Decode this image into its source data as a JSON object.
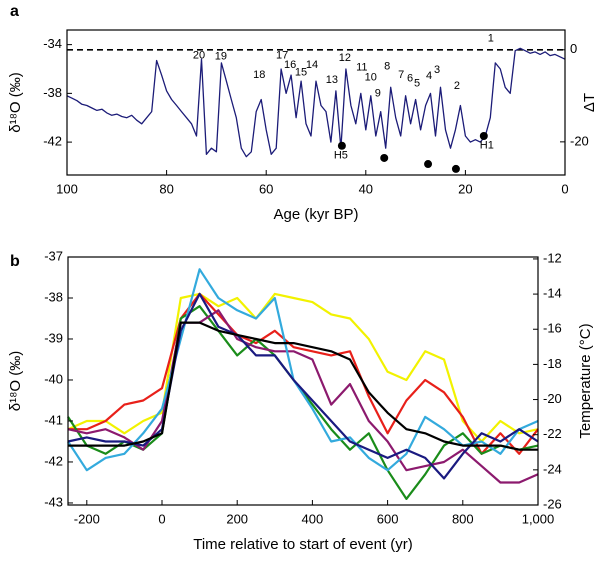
{
  "chart_data": [
    {
      "type": "line",
      "panel_label": "a",
      "x_label": "Age (kyr BP)",
      "y_label": "δ¹⁸O (‰)",
      "y2_label": "ΔT",
      "xlim": [
        100,
        0
      ],
      "xticks": [
        100,
        80,
        60,
        40,
        20,
        0
      ],
      "ylim": [
        -44.7,
        -32.8
      ],
      "yticks": [
        -34,
        -38,
        -42
      ],
      "y2lim": [
        -27.2,
        4.3
      ],
      "y2ticks": [
        0,
        -20
      ],
      "reference_line": {
        "axis": "y2",
        "value": 0
      },
      "x": [
        100,
        99,
        98,
        97,
        96,
        95,
        94,
        93,
        92,
        91,
        90,
        89,
        88,
        87,
        86,
        85,
        84,
        83,
        82,
        81,
        80,
        79,
        78,
        77,
        76,
        75,
        74,
        73,
        72,
        71,
        70,
        69,
        68,
        67,
        66,
        65,
        64,
        63,
        62,
        61,
        60,
        59,
        58,
        57,
        56,
        55,
        54,
        53,
        52,
        51,
        50,
        49,
        48,
        47,
        46,
        45,
        44,
        43,
        42,
        41,
        40,
        39,
        38,
        37,
        36,
        35,
        34,
        33,
        32,
        31,
        30,
        29,
        28,
        27,
        26,
        25,
        24,
        23,
        22,
        21,
        20,
        19,
        18,
        17,
        16,
        15,
        14,
        13,
        12,
        11,
        10,
        9,
        8,
        7,
        6,
        5,
        4,
        3,
        2,
        1,
        0
      ],
      "series": [
        {
          "color": "#1c1c78",
          "values": [
            -38.2,
            -38.4,
            -38.6,
            -38.9,
            -39.0,
            -39.2,
            -39.4,
            -39.3,
            -39.6,
            -39.8,
            -39.7,
            -39.9,
            -40.0,
            -39.8,
            -40.2,
            -40.5,
            -40.0,
            -39.5,
            -35.3,
            -36.5,
            -37.8,
            -38.5,
            -39.0,
            -39.5,
            -40.0,
            -40.5,
            -41.5,
            -35.2,
            -43.0,
            -42.5,
            -42.8,
            -35.5,
            -37.0,
            -38.5,
            -40.0,
            -42.5,
            -43.2,
            -42.8,
            -39.5,
            -38.5,
            -41.0,
            -43.0,
            -42.5,
            -36.0,
            -38.0,
            -36.5,
            -40.0,
            -37.0,
            -40.5,
            -41.5,
            -37.0,
            -39.0,
            -39.5,
            -42.0,
            -37.8,
            -42.5,
            -36.0,
            -39.0,
            -40.5,
            -38.0,
            -41.0,
            -38.2,
            -41.5,
            -39.5,
            -42.5,
            -37.5,
            -40.0,
            -41.5,
            -38.2,
            -40.5,
            -38.5,
            -41.0,
            -39.0,
            -38.0,
            -41.5,
            -37.5,
            -41.0,
            -42.5,
            -41.0,
            -39.0,
            -41.5,
            -42.0,
            -41.8,
            -42.0,
            -41.5,
            -40.0,
            -35.5,
            -36.0,
            -37.5,
            -38.0,
            -34.5,
            -34.3,
            -34.5,
            -34.7,
            -34.6,
            -34.8,
            -34.6,
            -34.9,
            -34.8,
            -35.0,
            -35.2
          ]
        }
      ],
      "annotations": [
        {
          "text": "20",
          "x": 73.5,
          "y": -34.9
        },
        {
          "text": "19",
          "x": 69.1,
          "y": -35.0
        },
        {
          "text": "18",
          "x": 61.4,
          "y": -36.5
        },
        {
          "text": "17",
          "x": 56.8,
          "y": -34.9
        },
        {
          "text": "16",
          "x": 55.2,
          "y": -35.7
        },
        {
          "text": "15",
          "x": 53.0,
          "y": -36.3
        },
        {
          "text": "14",
          "x": 50.8,
          "y": -35.7
        },
        {
          "text": "13",
          "x": 46.8,
          "y": -36.9
        },
        {
          "text": "12",
          "x": 44.2,
          "y": -35.1
        },
        {
          "text": "11",
          "x": 40.8,
          "y": -35.9
        },
        {
          "text": "10",
          "x": 39.0,
          "y": -36.7
        },
        {
          "text": "9",
          "x": 37.6,
          "y": -38.0
        },
        {
          "text": "8",
          "x": 35.7,
          "y": -35.8
        },
        {
          "text": "7",
          "x": 32.9,
          "y": -36.5
        },
        {
          "text": "6",
          "x": 31.1,
          "y": -36.8
        },
        {
          "text": "5",
          "x": 29.7,
          "y": -37.2
        },
        {
          "text": "4",
          "x": 27.3,
          "y": -36.6
        },
        {
          "text": "3",
          "x": 25.7,
          "y": -36.1
        },
        {
          "text": "2",
          "x": 21.7,
          "y": -37.4
        },
        {
          "text": "1",
          "x": 14.9,
          "y": -33.5
        },
        {
          "text": "H5",
          "x": 45.0,
          "y": -43.1
        },
        {
          "text": "H1",
          "x": 15.7,
          "y": -42.3
        }
      ],
      "markers": {
        "color": "#000000",
        "x": [
          44.8,
          36.3,
          27.5,
          21.9,
          16.3
        ],
        "y": [
          -42.3,
          -43.3,
          -43.8,
          -44.2,
          -41.5
        ]
      }
    },
    {
      "type": "line",
      "panel_label": "b",
      "x_label": "Time relative to start of event (yr)",
      "y_label": "δ¹⁸O (‰)",
      "y2_label": "Temperature (°C)",
      "xlim": [
        -250,
        1000
      ],
      "xticks": [
        -200,
        0,
        200,
        400,
        600,
        800,
        {
          "value": 1000,
          "label": "1,000"
        }
      ],
      "ylim": [
        -43.05,
        -37
      ],
      "yticks": [
        -37,
        -38,
        -39,
        -40,
        -41,
        -42,
        -43
      ],
      "y2lim": [
        -26,
        -11.89
      ],
      "y2ticks": [
        -12,
        -14,
        -16,
        -18,
        -20,
        -22,
        -24,
        -26
      ],
      "x": [
        -250,
        -200,
        -150,
        -100,
        -50,
        0,
        50,
        100,
        150,
        200,
        250,
        300,
        350,
        400,
        450,
        500,
        550,
        600,
        650,
        700,
        750,
        800,
        850,
        900,
        950,
        1000
      ],
      "series": [
        {
          "color": "#f2f200",
          "values": [
            -41.2,
            -41.0,
            -41.0,
            -41.3,
            -41.0,
            -40.8,
            -38.0,
            -37.9,
            -38.2,
            -38.0,
            -38.5,
            -37.9,
            -38.0,
            -38.1,
            -38.4,
            -38.5,
            -39.0,
            -39.8,
            -40.0,
            -39.3,
            -39.5,
            -41.0,
            -41.5,
            -41.0,
            -41.3,
            -41.2
          ]
        },
        {
          "color": "#e8201a",
          "values": [
            -41.2,
            -41.2,
            -41.0,
            -40.6,
            -40.5,
            -40.2,
            -38.5,
            -37.9,
            -38.4,
            -38.9,
            -39.1,
            -38.8,
            -39.2,
            -39.3,
            -39.4,
            -39.3,
            -40.4,
            -41.3,
            -40.5,
            -40.0,
            -40.3,
            -40.9,
            -41.8,
            -41.3,
            -41.8,
            -41.2
          ]
        },
        {
          "color": "#1a8c1a",
          "values": [
            -40.9,
            -41.6,
            -41.8,
            -41.5,
            -41.7,
            -41.3,
            -38.5,
            -38.2,
            -38.8,
            -39.4,
            -39.0,
            -39.4,
            -40.0,
            -40.6,
            -41.2,
            -41.7,
            -41.3,
            -42.2,
            -42.9,
            -42.3,
            -41.6,
            -41.3,
            -41.8,
            -41.6,
            -41.7,
            -41.6
          ]
        },
        {
          "color": "#8c1a6e",
          "values": [
            -41.2,
            -41.3,
            -41.2,
            -41.4,
            -41.7,
            -41.0,
            -38.6,
            -38.6,
            -38.3,
            -39.0,
            -39.2,
            -39.3,
            -39.3,
            -39.5,
            -40.6,
            -40.1,
            -41.0,
            -41.5,
            -42.2,
            -42.1,
            -42.0,
            -41.7,
            -42.1,
            -42.5,
            -42.5,
            -42.3
          ]
        },
        {
          "color": "#33aadd",
          "values": [
            -41.5,
            -42.2,
            -41.9,
            -41.8,
            -41.3,
            -40.7,
            -39.0,
            -37.3,
            -38.0,
            -38.3,
            -38.5,
            -38.0,
            -40.0,
            -40.7,
            -41.5,
            -41.4,
            -41.9,
            -42.2,
            -41.8,
            -40.9,
            -41.2,
            -41.6,
            -41.5,
            -41.8,
            -41.2,
            -41.0
          ]
        },
        {
          "color": "#1a1a80",
          "values": [
            -41.5,
            -41.4,
            -41.5,
            -41.5,
            -41.6,
            -41.2,
            -38.8,
            -37.9,
            -38.7,
            -38.9,
            -39.4,
            -39.4,
            -40.0,
            -40.5,
            -41.0,
            -41.5,
            -41.7,
            -41.9,
            -41.7,
            -41.9,
            -42.4,
            -41.8,
            -41.3,
            -41.5,
            -41.2,
            -41.5
          ]
        },
        {
          "color": "#000000",
          "values": [
            -41.6,
            -41.6,
            -41.6,
            -41.6,
            -41.5,
            -41.3,
            -38.6,
            -38.6,
            -38.8,
            -38.9,
            -39.0,
            -39.1,
            -39.1,
            -39.2,
            -39.3,
            -39.5,
            -40.3,
            -40.8,
            -41.2,
            -41.3,
            -41.5,
            -41.6,
            -41.6,
            -41.6,
            -41.7,
            -41.7
          ]
        }
      ]
    }
  ]
}
